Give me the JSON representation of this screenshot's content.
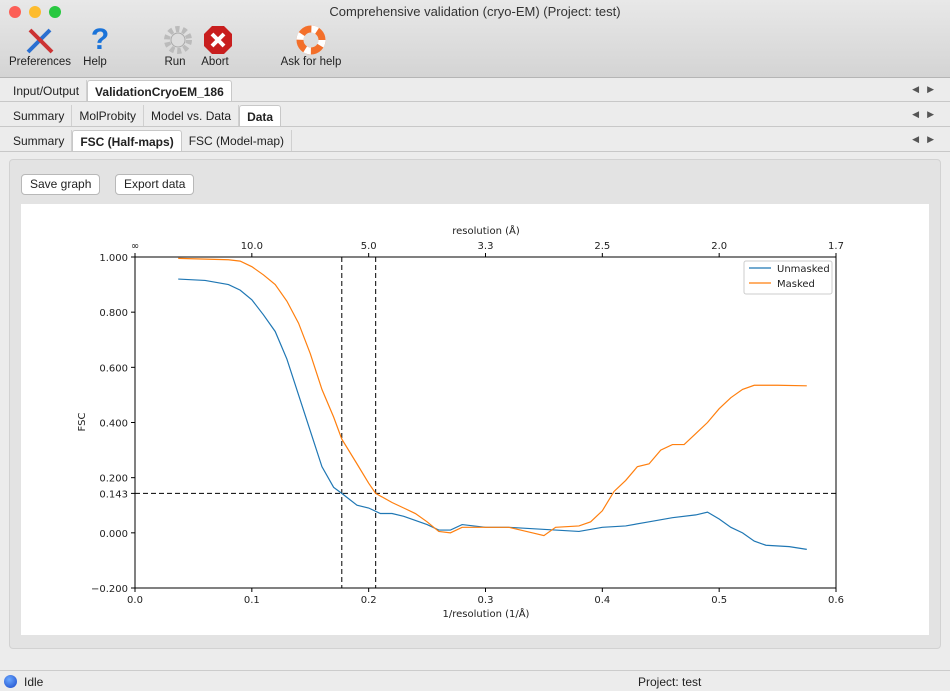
{
  "window": {
    "title": "Comprehensive validation (cryo-EM) (Project: test)"
  },
  "toolbar": {
    "preferences": "Preferences",
    "help": "Help",
    "run": "Run",
    "abort": "Abort",
    "ask": "Ask for help"
  },
  "tabs1": [
    "Input/Output",
    "ValidationCryoEM_186"
  ],
  "tabs2": [
    "Summary",
    "MolProbity",
    "Model vs. Data",
    "Data"
  ],
  "tabs3": [
    "Summary",
    "FSC (Half-maps)",
    "FSC (Model-map)"
  ],
  "buttons": {
    "save": "Save graph",
    "export": "Export data"
  },
  "status": {
    "state": "Idle",
    "project": "Project: test"
  },
  "chart_data": {
    "type": "line",
    "xlabel": "1/resolution (1/Å)",
    "ylabel": "FSC",
    "top_xlabel": "resolution (Å)",
    "xlim": [
      0,
      0.6
    ],
    "ylim": [
      -0.2,
      1.0
    ],
    "xticks": [
      "0.0",
      "0.1",
      "0.2",
      "0.3",
      "0.4",
      "0.5",
      "0.6"
    ],
    "top_ticks": [
      "∞",
      "10.0",
      "5.0",
      "3.3",
      "2.5",
      "2.0",
      "1.7"
    ],
    "yticks": [
      "−0.200",
      "0.000",
      "0.143",
      "0.200",
      "0.400",
      "0.600",
      "0.800",
      "1.000"
    ],
    "threshold": 0.143,
    "vlines": [
      0.177,
      0.206
    ],
    "legend": "top-right",
    "grid": false,
    "series": [
      {
        "name": "Unmasked",
        "color": "#1f77b4",
        "x": [
          0.037,
          0.06,
          0.08,
          0.09,
          0.1,
          0.11,
          0.12,
          0.13,
          0.14,
          0.15,
          0.16,
          0.17,
          0.177,
          0.19,
          0.2,
          0.21,
          0.22,
          0.23,
          0.24,
          0.25,
          0.26,
          0.27,
          0.28,
          0.3,
          0.32,
          0.34,
          0.36,
          0.38,
          0.4,
          0.42,
          0.44,
          0.46,
          0.48,
          0.49,
          0.5,
          0.51,
          0.52,
          0.53,
          0.54,
          0.56,
          0.575
        ],
        "y": [
          0.92,
          0.915,
          0.9,
          0.88,
          0.845,
          0.79,
          0.73,
          0.63,
          0.5,
          0.37,
          0.24,
          0.165,
          0.143,
          0.1,
          0.09,
          0.07,
          0.07,
          0.06,
          0.045,
          0.03,
          0.01,
          0.01,
          0.03,
          0.02,
          0.02,
          0.015,
          0.01,
          0.005,
          0.02,
          0.025,
          0.04,
          0.055,
          0.065,
          0.075,
          0.05,
          0.02,
          0.0,
          -0.03,
          -0.045,
          -0.05,
          -0.06
        ]
      },
      {
        "name": "Masked",
        "color": "#ff7f0e",
        "x": [
          0.037,
          0.08,
          0.09,
          0.1,
          0.11,
          0.12,
          0.13,
          0.14,
          0.15,
          0.16,
          0.17,
          0.177,
          0.19,
          0.2,
          0.206,
          0.22,
          0.23,
          0.24,
          0.25,
          0.26,
          0.27,
          0.28,
          0.3,
          0.32,
          0.34,
          0.35,
          0.36,
          0.38,
          0.39,
          0.4,
          0.41,
          0.42,
          0.43,
          0.44,
          0.45,
          0.46,
          0.47,
          0.48,
          0.49,
          0.5,
          0.51,
          0.52,
          0.53,
          0.55,
          0.575
        ],
        "y": [
          0.995,
          0.99,
          0.985,
          0.965,
          0.935,
          0.9,
          0.84,
          0.76,
          0.65,
          0.52,
          0.42,
          0.34,
          0.25,
          0.18,
          0.143,
          0.11,
          0.09,
          0.07,
          0.04,
          0.005,
          0.0,
          0.02,
          0.02,
          0.02,
          0.0,
          -0.01,
          0.02,
          0.025,
          0.04,
          0.08,
          0.15,
          0.19,
          0.24,
          0.25,
          0.3,
          0.32,
          0.32,
          0.36,
          0.4,
          0.45,
          0.49,
          0.52,
          0.535,
          0.535,
          0.533
        ]
      }
    ]
  }
}
